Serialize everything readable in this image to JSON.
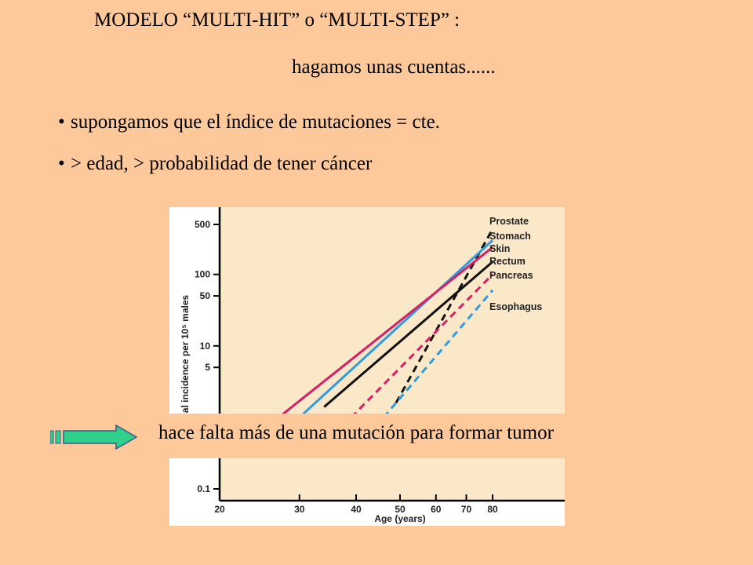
{
  "slide": {
    "title": "MODELO “MULTI-HIT” o “MULTI-STEP” :",
    "subtitle": "hagamos unas cuentas......",
    "bullets": [
      "supongamos que el índice de mutaciones = cte.",
      "> edad, > probabilidad de tener cáncer"
    ],
    "conclusion": "hace falta más de una mutación para formar tumor",
    "icons": {
      "arrow": "right-arrow-icon",
      "bullet": "bullet-dot"
    },
    "colors": {
      "background": "#fdc99b",
      "plot_bg": "#fbe8c8",
      "arrow": "#2fd18a"
    }
  },
  "chart_data": {
    "type": "line",
    "xlabel": "Age (years)",
    "ylabel": "al incidence per 10⁵ males",
    "x_ticks": [
      20,
      30,
      40,
      50,
      60,
      70,
      80
    ],
    "y_ticks": [
      0.1,
      5,
      10,
      50,
      100,
      500
    ],
    "y_tick_labels": [
      "0.1",
      "5",
      "10",
      "50",
      "100",
      "500"
    ],
    "yscale": "log",
    "xscale": "log",
    "xlim": [
      20,
      88
    ],
    "ylim": [
      0.1,
      700
    ],
    "series": [
      {
        "name": "Prostate",
        "color": "#111111",
        "dash": true,
        "x": [
          49,
          80
        ],
        "y": [
          1.6,
          430
        ]
      },
      {
        "name": "Stomach",
        "color": "#2f9be0",
        "dash": false,
        "x": [
          30,
          80
        ],
        "y": [
          1.0,
          300
        ]
      },
      {
        "name": "Skin",
        "color": "#d81e64",
        "dash": false,
        "x": [
          27,
          80
        ],
        "y": [
          1.0,
          240
        ]
      },
      {
        "name": "Rectum",
        "color": "#111111",
        "dash": false,
        "x": [
          34,
          80
        ],
        "y": [
          1.4,
          150
        ]
      },
      {
        "name": "Pancreas",
        "color": "#d81e64",
        "dash": true,
        "x": [
          39,
          80
        ],
        "y": [
          1.0,
          100
        ]
      },
      {
        "name": "Esophagus",
        "color": "#2f9be0",
        "dash": true,
        "x": [
          46,
          80
        ],
        "y": [
          1.0,
          60
        ]
      }
    ],
    "legend_order": [
      "Prostate",
      "Stomach",
      "Skin",
      "Rectum",
      "Pancreas",
      "Esophagus"
    ]
  }
}
